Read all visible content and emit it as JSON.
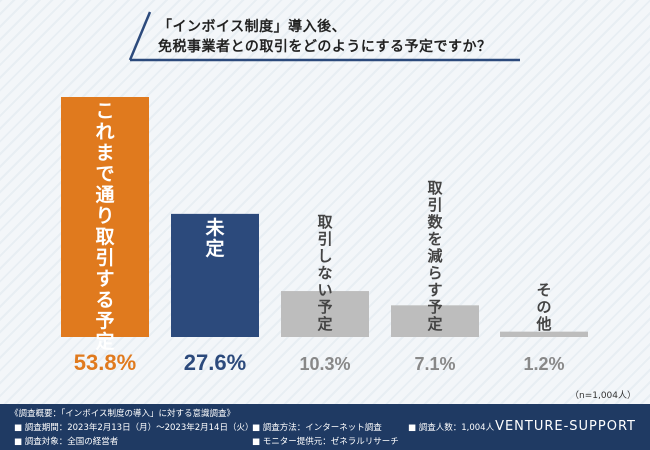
{
  "title": {
    "line1": "「インボイス制度」導入後、",
    "line2": "免税事業者との取引をどのようにする予定ですか？"
  },
  "colors": {
    "orange": "#e07a1e",
    "navy": "#2c4a7c",
    "gray": "#bdbdbd",
    "footer": "#1f3a63",
    "gray_text": "#888888"
  },
  "chart_data": {
    "type": "bar",
    "categories": [
      "これまで通り取引する予定",
      "未定",
      "取引しない予定",
      "取引数を減らす予定",
      "その他"
    ],
    "values": [
      53.8,
      27.6,
      10.3,
      7.1,
      1.2
    ],
    "value_labels": [
      "53.8%",
      "27.6%",
      "10.3%",
      "7.1%",
      "1.2%"
    ],
    "ylim": [
      0,
      53.8
    ],
    "title": "「インボイス制度」導入後、免税事業者との取引をどのようにする予定ですか？",
    "xlabel": "",
    "ylabel": ""
  },
  "sample_size": "（n=1,004人）",
  "footer": {
    "overview": "《調査概要：「インボイス制度の導入」に対する意識調査》",
    "period": "■ 調査期間：2023年2月13日（月）～2023年2月14日（火）",
    "method": "■ 調査方法：インターネット調査",
    "count": "■ 調査人数：1,004人",
    "target": "■ 調査対象：全国の経営者",
    "monitor": "■ モニター提供元：ゼネラルリサーチ",
    "brand": "VENTURE-SUPPORT"
  }
}
